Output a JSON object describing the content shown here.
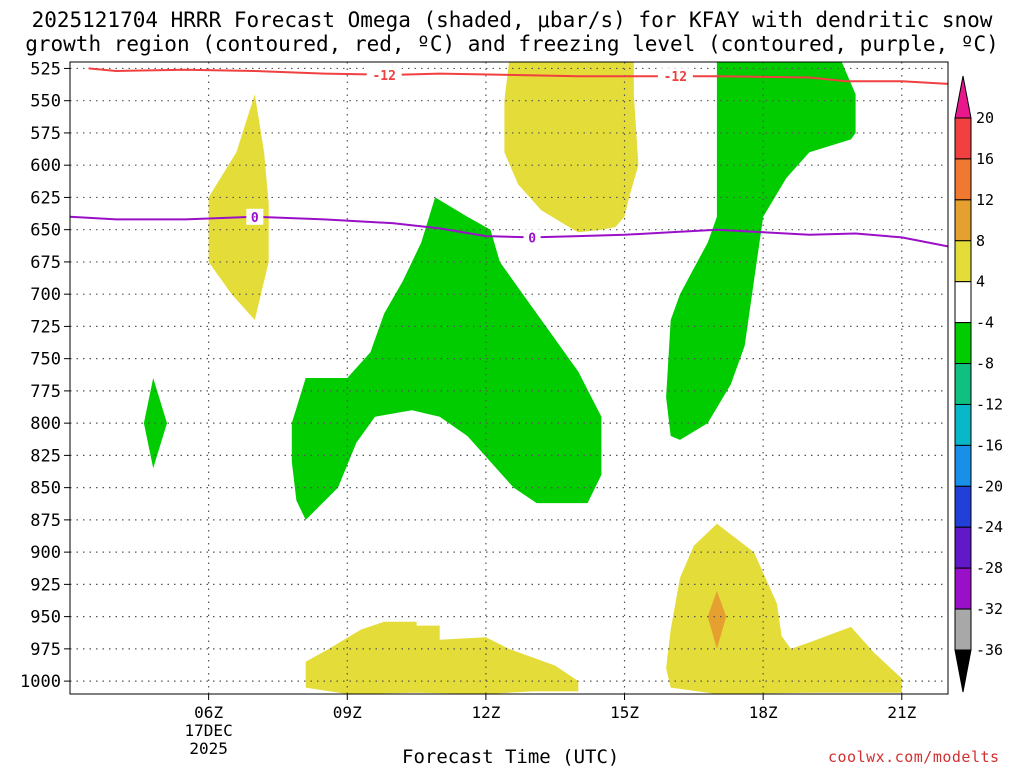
{
  "title": {
    "line1": "2025121704 HRRR Forecast Omega (shaded, μbar/s) for KFAY with dendritic snow",
    "line2": "growth region (contoured, red, ºC) and freezing level (contoured, purple, ºC)"
  },
  "credit": "coolwx.com/modelts",
  "colors": {
    "dendritic_line": "#f04040",
    "freezing_line": "#9a10c8",
    "omega_green": "#00cc00",
    "omega_yellow": "#e4dc38",
    "omega_orange": "#e6a030",
    "ground": "#a8522a"
  },
  "chart_data": {
    "type": "contour",
    "xlabel": "Forecast Time (UTC)",
    "x_range_hours": [
      3.0,
      22.0
    ],
    "y_range_hpa": [
      1010,
      520
    ],
    "x_ticks": [
      {
        "hour": 6,
        "label": "06Z",
        "sub1": "17DEC",
        "sub2": "2025"
      },
      {
        "hour": 9,
        "label": "09Z"
      },
      {
        "hour": 12,
        "label": "12Z"
      },
      {
        "hour": 15,
        "label": "15Z"
      },
      {
        "hour": 18,
        "label": "18Z"
      },
      {
        "hour": 21,
        "label": "21Z"
      }
    ],
    "y_ticks": [
      "525",
      "550",
      "575",
      "600",
      "625",
      "650",
      "675",
      "700",
      "725",
      "750",
      "775",
      "800",
      "825",
      "850",
      "875",
      "900",
      "925",
      "950",
      "975",
      "1000"
    ],
    "grid": true,
    "colorbar": {
      "ticks": [
        "20",
        "16",
        "12",
        "8",
        "4",
        "-4",
        "-8",
        "-12",
        "-16",
        "-20",
        "-24",
        "-28",
        "-32",
        "-36"
      ],
      "colors": [
        "#e8188c",
        "#f04040",
        "#f07830",
        "#e6a030",
        "#e4dc38",
        "#ffffff",
        "#00cc00",
        "#10c080",
        "#08b8c8",
        "#1890e8",
        "#2040d8",
        "#6018c8",
        "#9a10c8",
        "#a8a8a8",
        "#000000"
      ]
    },
    "lines": [
      {
        "label": "-12",
        "color": "#f04040",
        "points": [
          [
            3.4,
            525
          ],
          [
            4.0,
            527
          ],
          [
            5.5,
            526
          ],
          [
            7.0,
            527
          ],
          [
            8.5,
            529
          ],
          [
            10.0,
            530
          ],
          [
            11.0,
            529
          ],
          [
            12.5,
            530
          ],
          [
            14.0,
            531
          ],
          [
            15.5,
            531
          ],
          [
            17.0,
            531
          ],
          [
            19.0,
            532
          ],
          [
            19.8,
            535
          ],
          [
            21.0,
            535
          ],
          [
            22.0,
            537
          ]
        ],
        "label_positions": [
          [
            9.8,
            530
          ],
          [
            16.1,
            531
          ]
        ]
      },
      {
        "label": "0",
        "color": "#9a10c8",
        "points": [
          [
            3.0,
            640
          ],
          [
            4.0,
            642
          ],
          [
            5.5,
            642
          ],
          [
            7.0,
            640
          ],
          [
            8.5,
            642
          ],
          [
            10.0,
            645
          ],
          [
            11.0,
            649
          ],
          [
            12.0,
            655
          ],
          [
            13.0,
            656
          ],
          [
            14.0,
            655
          ],
          [
            15.0,
            654
          ],
          [
            16.0,
            652
          ],
          [
            17.0,
            650
          ],
          [
            18.0,
            652
          ],
          [
            19.0,
            654
          ],
          [
            20.0,
            653
          ],
          [
            21.0,
            656
          ],
          [
            22.0,
            663
          ]
        ],
        "label_positions": [
          [
            7.0,
            640
          ],
          [
            13.0,
            656
          ]
        ]
      }
    ],
    "regions": [
      {
        "value": "-8 to -4",
        "color": "#00cc00",
        "points": [
          [
            17.0,
            520
          ],
          [
            19.7,
            520
          ],
          [
            20.0,
            545
          ],
          [
            20.0,
            575
          ],
          [
            19.9,
            580
          ],
          [
            19.0,
            590
          ],
          [
            18.5,
            610
          ],
          [
            18.0,
            640
          ],
          [
            17.8,
            690
          ],
          [
            17.6,
            740
          ],
          [
            17.3,
            770
          ],
          [
            16.8,
            800
          ],
          [
            16.2,
            813
          ],
          [
            16.0,
            810
          ],
          [
            15.9,
            780
          ],
          [
            16.0,
            720
          ],
          [
            16.2,
            700
          ],
          [
            16.5,
            680
          ],
          [
            16.8,
            660
          ],
          [
            17.0,
            640
          ],
          [
            17.0,
            520
          ]
        ]
      },
      {
        "value": "-8 to -4",
        "color": "#00cc00",
        "points": [
          [
            8.1,
            875
          ],
          [
            8.8,
            850
          ],
          [
            9.2,
            815
          ],
          [
            9.6,
            795
          ],
          [
            10.4,
            790
          ],
          [
            11.0,
            795
          ],
          [
            11.6,
            810
          ],
          [
            12.6,
            850
          ],
          [
            13.1,
            862
          ],
          [
            14.2,
            862
          ],
          [
            14.5,
            840
          ],
          [
            14.5,
            795
          ],
          [
            14.0,
            760
          ],
          [
            13.4,
            730
          ],
          [
            12.8,
            700
          ],
          [
            12.3,
            675
          ],
          [
            12.1,
            650
          ],
          [
            11.6,
            640
          ],
          [
            10.9,
            625
          ],
          [
            10.6,
            660
          ],
          [
            10.2,
            690
          ],
          [
            9.8,
            715
          ],
          [
            9.5,
            745
          ],
          [
            9.0,
            765
          ],
          [
            8.9,
            765
          ],
          [
            8.1,
            765
          ],
          [
            7.8,
            800
          ],
          [
            7.8,
            830
          ],
          [
            7.9,
            860
          ],
          [
            8.1,
            875
          ]
        ]
      },
      {
        "value": "-8 to -4",
        "color": "#00cc00",
        "points": [
          [
            4.8,
            765
          ],
          [
            4.6,
            800
          ],
          [
            4.8,
            835
          ],
          [
            5.1,
            800
          ],
          [
            4.8,
            765
          ]
        ]
      },
      {
        "value": "4 to 8",
        "color": "#e4dc38",
        "points": [
          [
            12.5,
            520
          ],
          [
            15.2,
            520
          ],
          [
            15.2,
            545
          ],
          [
            15.3,
            600
          ],
          [
            15.1,
            625
          ],
          [
            15.0,
            640
          ],
          [
            14.8,
            648
          ],
          [
            14.5,
            650
          ],
          [
            14.0,
            652
          ],
          [
            13.8,
            648
          ],
          [
            13.2,
            635
          ],
          [
            12.7,
            615
          ],
          [
            12.4,
            590
          ],
          [
            12.4,
            550
          ],
          [
            12.5,
            520
          ]
        ]
      },
      {
        "value": "4 to 8",
        "color": "#e4dc38",
        "points": [
          [
            7.0,
            545
          ],
          [
            6.6,
            590
          ],
          [
            6.0,
            625
          ],
          [
            6.0,
            675
          ],
          [
            6.5,
            700
          ],
          [
            7.0,
            720
          ],
          [
            7.3,
            675
          ],
          [
            7.3,
            630
          ],
          [
            7.2,
            590
          ],
          [
            7.0,
            545
          ]
        ]
      },
      {
        "value": "4 to 8",
        "color": "#e4dc38",
        "points": [
          [
            8.1,
            985
          ],
          [
            8.1,
            1005
          ],
          [
            9.0,
            1010
          ],
          [
            10.5,
            1009
          ],
          [
            12.0,
            1010
          ],
          [
            13.0,
            1008
          ],
          [
            14.0,
            1008
          ],
          [
            14.0,
            1000
          ],
          [
            13.5,
            988
          ],
          [
            12.5,
            975
          ],
          [
            12.0,
            966
          ],
          [
            11.0,
            968
          ],
          [
            11.0,
            957
          ],
          [
            10.5,
            957
          ],
          [
            10.5,
            954
          ],
          [
            9.8,
            954
          ],
          [
            9.3,
            960
          ],
          [
            8.6,
            975
          ],
          [
            8.1,
            985
          ]
        ]
      },
      {
        "value": "4 to 8",
        "color": "#e4dc38",
        "points": [
          [
            15.9,
            990
          ],
          [
            16.0,
            1005
          ],
          [
            17.0,
            1010
          ],
          [
            19.0,
            1009
          ],
          [
            21.0,
            1009
          ],
          [
            21.0,
            998
          ],
          [
            20.4,
            978
          ],
          [
            19.9,
            958
          ],
          [
            19.0,
            970
          ],
          [
            18.6,
            975
          ],
          [
            18.4,
            965
          ],
          [
            18.3,
            940
          ],
          [
            17.8,
            900
          ],
          [
            17.0,
            878
          ],
          [
            16.5,
            895
          ],
          [
            16.2,
            920
          ],
          [
            16.0,
            960
          ],
          [
            15.9,
            990
          ]
        ]
      },
      {
        "value": "8 to 12",
        "color": "#e6a030",
        "points": [
          [
            17.0,
            930
          ],
          [
            16.8,
            950
          ],
          [
            17.0,
            975
          ],
          [
            17.2,
            950
          ],
          [
            17.0,
            930
          ]
        ]
      }
    ],
    "ground": {
      "color": "#a8522a",
      "top_pressure": 1010
    }
  }
}
